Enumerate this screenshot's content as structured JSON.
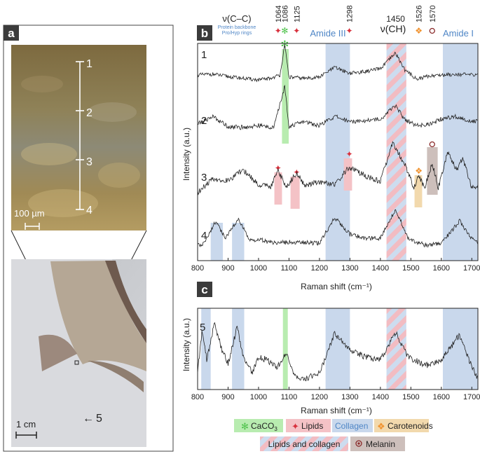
{
  "figure": {
    "panels": {
      "a": "a",
      "b": "b",
      "c": "c"
    },
    "micro_scale_label": "100 µm",
    "macro_scale_label": "1 cm",
    "micro_points": [
      "1",
      "2",
      "3",
      "4"
    ],
    "sample_label": "5",
    "arrow_glyph": "←"
  },
  "annotations": {
    "vcc_symbol": "ν(C–C)",
    "vcc_sub1": "Protein backbone",
    "vcc_sub2": "Pro/Hyp rings",
    "peak_labels": [
      {
        "shift": 1064,
        "label": "1064"
      },
      {
        "shift": 1086,
        "label": "1086"
      },
      {
        "shift": 1125,
        "label": "1125"
      },
      {
        "shift": 1298,
        "label": "1298"
      },
      {
        "shift": 1450,
        "label": "1450"
      },
      {
        "shift": 1526,
        "label": "1526"
      },
      {
        "shift": 1570,
        "label": "1570"
      }
    ],
    "ch_label": "ν(CH)",
    "amide3": "Amide III",
    "amide1": "Amide I"
  },
  "legend": {
    "caco3": "CaCO",
    "caco3_sub": "3",
    "lipids": "Lipids",
    "collagen": "Collagen",
    "carotenoids": "Carotenoids",
    "lipids_collagen": "Lipids and collagen",
    "melanin": "Melanin"
  },
  "colors": {
    "collagen": "#c9d8ec",
    "caco3": "#b8ecb0",
    "lipids": "#f4c2c6",
    "carotenoids": "#f2d9ad",
    "melanin": "#cdbfbb",
    "lipids_star": "#d8303c",
    "caco3_star": "#4ec24b",
    "carot_star": "#f0922e",
    "melanin_dot": "#8a2a2a",
    "amide_text": "#4f86c6"
  },
  "chart_data": [
    {
      "panel": "b",
      "type": "line",
      "xlabel": "Raman shift (cm⁻¹)",
      "ylabel": "Intensity (a.u.)",
      "xlim": [
        800,
        1720
      ],
      "xticks": [
        800,
        900,
        1000,
        1100,
        1200,
        1300,
        1400,
        1500,
        1600,
        1700
      ],
      "collagen_bands": [
        [
          1220,
          1300
        ],
        [
          1605,
          1720
        ]
      ],
      "collagen_bands_s4": [
        [
          843,
          883
        ],
        [
          913,
          953
        ]
      ],
      "lipid_collagen_band": [
        1420,
        1485
      ],
      "caco3_band": [
        1077,
        1099
      ],
      "series": [
        {
          "name": "1",
          "values": [
            [
              800,
              0.3
            ],
            [
              850,
              0.32
            ],
            [
              900,
              0.26
            ],
            [
              950,
              0.22
            ],
            [
              1000,
              0.18
            ],
            [
              1040,
              0.22
            ],
            [
              1070,
              0.3
            ],
            [
              1086,
              1.0
            ],
            [
              1100,
              0.25
            ],
            [
              1150,
              0.22
            ],
            [
              1200,
              0.25
            ],
            [
              1250,
              0.48
            ],
            [
              1300,
              0.34
            ],
            [
              1350,
              0.38
            ],
            [
              1400,
              0.45
            ],
            [
              1450,
              0.82
            ],
            [
              1480,
              0.42
            ],
            [
              1520,
              0.2
            ],
            [
              1560,
              0.28
            ],
            [
              1600,
              0.3
            ],
            [
              1650,
              0.32
            ],
            [
              1700,
              0.3
            ],
            [
              1720,
              0.32
            ]
          ]
        },
        {
          "name": "2",
          "values": [
            [
              800,
              0.25
            ],
            [
              850,
              0.4
            ],
            [
              900,
              0.2
            ],
            [
              950,
              0.18
            ],
            [
              1000,
              0.22
            ],
            [
              1050,
              0.18
            ],
            [
              1086,
              1.0
            ],
            [
              1100,
              0.2
            ],
            [
              1150,
              0.3
            ],
            [
              1200,
              0.22
            ],
            [
              1250,
              0.4
            ],
            [
              1300,
              0.3
            ],
            [
              1350,
              0.32
            ],
            [
              1400,
              0.35
            ],
            [
              1450,
              0.62
            ],
            [
              1480,
              0.34
            ],
            [
              1520,
              0.22
            ],
            [
              1560,
              0.24
            ],
            [
              1600,
              0.35
            ],
            [
              1650,
              0.4
            ],
            [
              1700,
              0.3
            ],
            [
              1720,
              0.3
            ]
          ]
        },
        {
          "name": "3",
          "values": [
            [
              800,
              0.12
            ],
            [
              850,
              0.35
            ],
            [
              900,
              0.32
            ],
            [
              950,
              0.5
            ],
            [
              1000,
              0.25
            ],
            [
              1040,
              0.22
            ],
            [
              1064,
              0.5
            ],
            [
              1090,
              0.2
            ],
            [
              1125,
              0.45
            ],
            [
              1150,
              0.24
            ],
            [
              1200,
              0.3
            ],
            [
              1250,
              0.25
            ],
            [
              1298,
              0.55
            ],
            [
              1350,
              0.4
            ],
            [
              1400,
              0.3
            ],
            [
              1440,
              0.95
            ],
            [
              1480,
              0.6
            ],
            [
              1510,
              0.2
            ],
            [
              1526,
              0.4
            ],
            [
              1545,
              0.2
            ],
            [
              1570,
              0.62
            ],
            [
              1590,
              0.2
            ],
            [
              1620,
              0.8
            ],
            [
              1650,
              0.5
            ],
            [
              1670,
              0.7
            ],
            [
              1700,
              0.2
            ],
            [
              1720,
              0.25
            ]
          ]
        },
        {
          "name": "4",
          "values": [
            [
              800,
              0.25
            ],
            [
              820,
              0.3
            ],
            [
              860,
              0.75
            ],
            [
              890,
              0.4
            ],
            [
              935,
              0.78
            ],
            [
              970,
              0.35
            ],
            [
              1000,
              0.38
            ],
            [
              1050,
              0.3
            ],
            [
              1100,
              0.32
            ],
            [
              1200,
              0.3
            ],
            [
              1250,
              0.82
            ],
            [
              1300,
              0.48
            ],
            [
              1350,
              0.4
            ],
            [
              1400,
              0.4
            ],
            [
              1450,
              1.0
            ],
            [
              1490,
              0.4
            ],
            [
              1550,
              0.25
            ],
            [
              1600,
              0.3
            ],
            [
              1660,
              0.75
            ],
            [
              1700,
              0.4
            ],
            [
              1720,
              0.3
            ]
          ]
        }
      ]
    },
    {
      "panel": "c",
      "type": "line",
      "xlabel": "Raman shift (cm⁻¹)",
      "ylabel": "Intensity (a.u.)",
      "xlim": [
        800,
        1720
      ],
      "xticks": [
        800,
        900,
        1000,
        1100,
        1200,
        1300,
        1400,
        1500,
        1600,
        1700
      ],
      "collagen_bands": [
        [
          812,
          843
        ],
        [
          913,
          953
        ],
        [
          1220,
          1300
        ],
        [
          1605,
          1720
        ]
      ],
      "caco3_band": [
        1080,
        1096
      ],
      "lipid_collagen_band": [
        1420,
        1485
      ],
      "series": [
        {
          "name": "5",
          "values": [
            [
              800,
              0.2
            ],
            [
              815,
              0.85
            ],
            [
              830,
              0.4
            ],
            [
              855,
              0.95
            ],
            [
              880,
              0.55
            ],
            [
              900,
              0.35
            ],
            [
              930,
              0.9
            ],
            [
              950,
              0.45
            ],
            [
              980,
              0.2
            ],
            [
              1000,
              0.45
            ],
            [
              1030,
              0.4
            ],
            [
              1060,
              0.28
            ],
            [
              1090,
              0.5
            ],
            [
              1120,
              0.15
            ],
            [
              1150,
              0.12
            ],
            [
              1200,
              0.2
            ],
            [
              1250,
              0.8
            ],
            [
              1300,
              0.55
            ],
            [
              1350,
              0.45
            ],
            [
              1400,
              0.4
            ],
            [
              1450,
              0.82
            ],
            [
              1490,
              0.45
            ],
            [
              1550,
              0.32
            ],
            [
              1600,
              0.4
            ],
            [
              1660,
              0.78
            ],
            [
              1700,
              0.3
            ],
            [
              1720,
              0.12
            ]
          ]
        }
      ]
    }
  ]
}
